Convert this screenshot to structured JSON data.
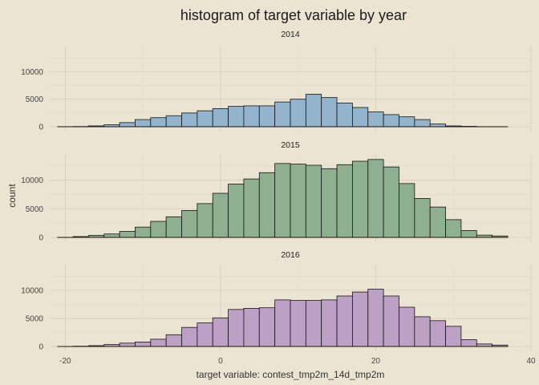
{
  "chart_data": {
    "type": "bar",
    "title": "histogram of target variable by year",
    "xlabel": "target variable: contest_tmp2m_14d_tmp2m",
    "ylabel": "count",
    "xlim": [
      -22,
      40
    ],
    "ylim": [
      0,
      14000
    ],
    "x_ticks": [
      -20,
      0,
      20,
      40
    ],
    "y_ticks": [
      0,
      5000,
      10000
    ],
    "bins": [
      -20,
      -18,
      -16,
      -14,
      -12,
      -10,
      -8,
      -6,
      -4,
      -2,
      0,
      2,
      4,
      6,
      8,
      10,
      12,
      14,
      16,
      18,
      20,
      22,
      24,
      26,
      28,
      30,
      32,
      34,
      36
    ],
    "bin_width": 2,
    "grid": true,
    "facets": [
      {
        "label": "2014",
        "color": "#94b3cd",
        "values": [
          10,
          40,
          150,
          350,
          750,
          1300,
          1650,
          2000,
          2500,
          2900,
          3300,
          3700,
          3800,
          3800,
          4500,
          5000,
          5900,
          5300,
          4300,
          3500,
          2700,
          2200,
          1800,
          1300,
          500,
          150,
          70,
          20,
          5
        ]
      },
      {
        "label": "2015",
        "color": "#8fb08e",
        "values": [
          20,
          150,
          350,
          600,
          1050,
          1800,
          2800,
          3600,
          4700,
          5900,
          7700,
          9300,
          10200,
          11300,
          12900,
          12800,
          12600,
          12000,
          12700,
          13300,
          13600,
          12300,
          9400,
          6800,
          5300,
          3100,
          1200,
          400,
          250
        ]
      },
      {
        "label": "2016",
        "color": "#bca1c4",
        "values": [
          10,
          50,
          150,
          350,
          600,
          800,
          1300,
          2100,
          3400,
          4200,
          5100,
          6600,
          6800,
          6900,
          8300,
          8200,
          8200,
          8300,
          9000,
          9700,
          10200,
          9000,
          7000,
          5300,
          4600,
          3600,
          1200,
          450,
          250
        ]
      }
    ]
  }
}
